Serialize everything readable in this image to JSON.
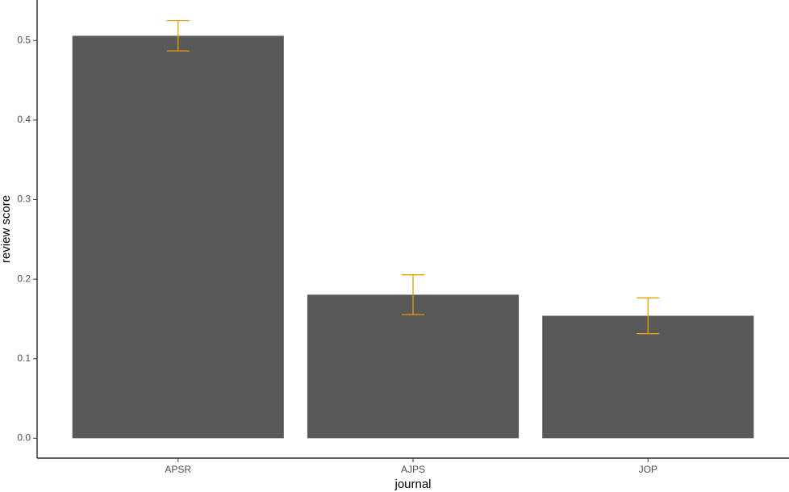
{
  "chart_data": {
    "type": "bar",
    "x_label": "journal",
    "y_label": "review score",
    "categories": [
      "APSR",
      "AJPS",
      "JOP"
    ],
    "values": [
      0.506,
      0.1805,
      0.154
    ],
    "errors": [
      0.019,
      0.025,
      0.0225
    ],
    "color": "#595959",
    "error_color": "#E69F00",
    "ylim": [
      -0.025,
      0.551
    ],
    "yticks": [
      {
        "value": 0,
        "label": "0.0"
      },
      0.1,
      0.2,
      0.3,
      0.4,
      0.5
    ],
    "grid": false
  }
}
